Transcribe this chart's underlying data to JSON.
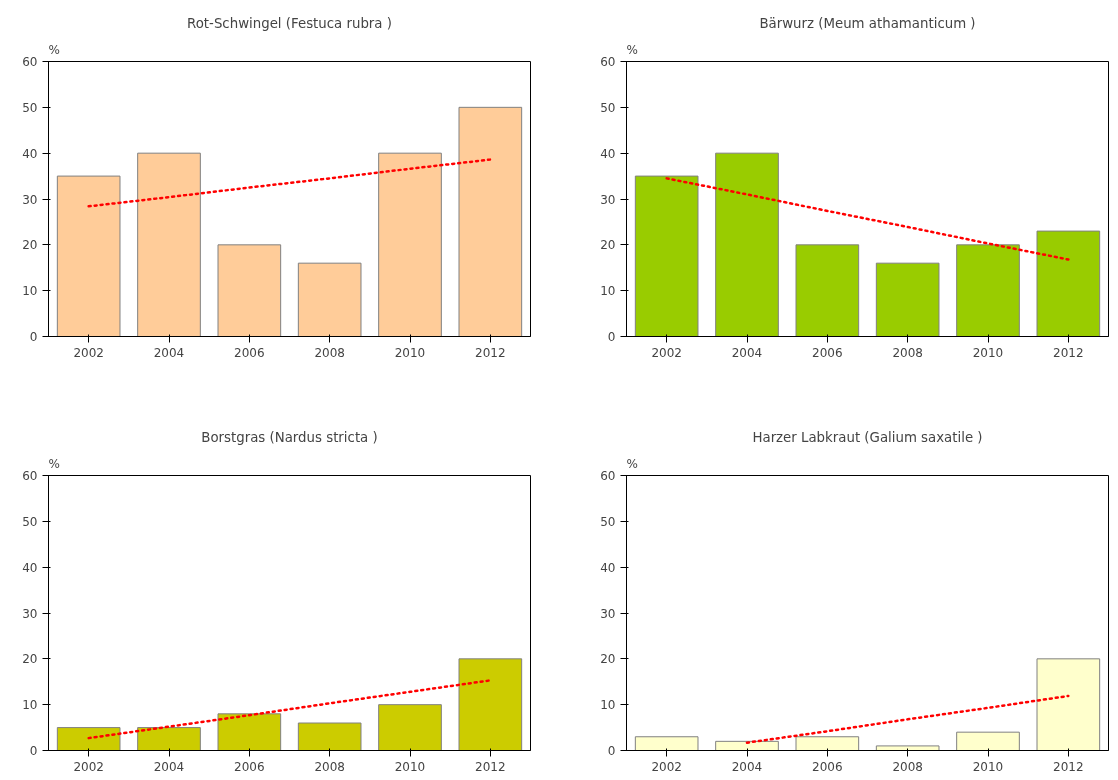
{
  "chart_data": [
    {
      "type": "bar",
      "title": "Rot-Schwingel (Festuca rubra )",
      "ylabel": "%",
      "categories": [
        "2002",
        "2004",
        "2006",
        "2008",
        "2010",
        "2012"
      ],
      "series": [
        {
          "color": "#ffcc99",
          "values": [
            35,
            40,
            20,
            16,
            40,
            50
          ]
        },
        {
          "type": "line",
          "color": "#ff0000",
          "line_style": "dashed",
          "values": [
            28.4,
            30.4,
            32.5,
            34.5,
            36.6,
            38.6
          ]
        }
      ],
      "ylim": [
        0,
        60
      ],
      "yticks": [
        0,
        10,
        20,
        30,
        40,
        50,
        60
      ],
      "grid": false
    },
    {
      "type": "bar",
      "title": "Bärwurz (Meum athamanticum )",
      "ylabel": "%",
      "categories": [
        "2002",
        "2004",
        "2006",
        "2008",
        "2010",
        "2012"
      ],
      "series": [
        {
          "color": "#99cc00",
          "values": [
            35,
            40,
            20,
            16,
            20,
            23
          ]
        },
        {
          "type": "line",
          "color": "#ff0000",
          "line_style": "dashed",
          "values": [
            34.5,
            31.0,
            27.4,
            23.9,
            20.3,
            16.8
          ]
        }
      ],
      "ylim": [
        0,
        60
      ],
      "yticks": [
        0,
        10,
        20,
        30,
        40,
        50,
        60
      ],
      "grid": false
    },
    {
      "type": "bar",
      "title": "Borstgras (Nardus stricta )",
      "ylabel": "%",
      "categories": [
        "2002",
        "2004",
        "2006",
        "2008",
        "2010",
        "2012"
      ],
      "series": [
        {
          "color": "#cccc00",
          "values": [
            5,
            5,
            8,
            6,
            10,
            20
          ]
        },
        {
          "type": "line",
          "color": "#ff0000",
          "line_style": "dashed",
          "values": [
            2.7,
            5.2,
            7.7,
            10.3,
            12.8,
            15.3
          ]
        }
      ],
      "ylim": [
        0,
        60
      ],
      "yticks": [
        0,
        10,
        20,
        30,
        40,
        50,
        60
      ],
      "grid": false
    },
    {
      "type": "bar",
      "title": "Harzer Labkraut (Galium saxatile )",
      "ylabel": "%",
      "categories": [
        "2002",
        "2004",
        "2006",
        "2008",
        "2010",
        "2012"
      ],
      "series": [
        {
          "color": "#ffffcc",
          "values": [
            3,
            2,
            3,
            1,
            4,
            20
          ]
        },
        {
          "type": "line",
          "color": "#ff0000",
          "line_style": "dashed",
          "values": [
            null,
            1.7,
            4.2,
            6.8,
            9.3,
            11.9
          ]
        }
      ],
      "ylim": [
        0,
        60
      ],
      "yticks": [
        0,
        10,
        20,
        30,
        40,
        50,
        60
      ],
      "grid": false
    }
  ]
}
